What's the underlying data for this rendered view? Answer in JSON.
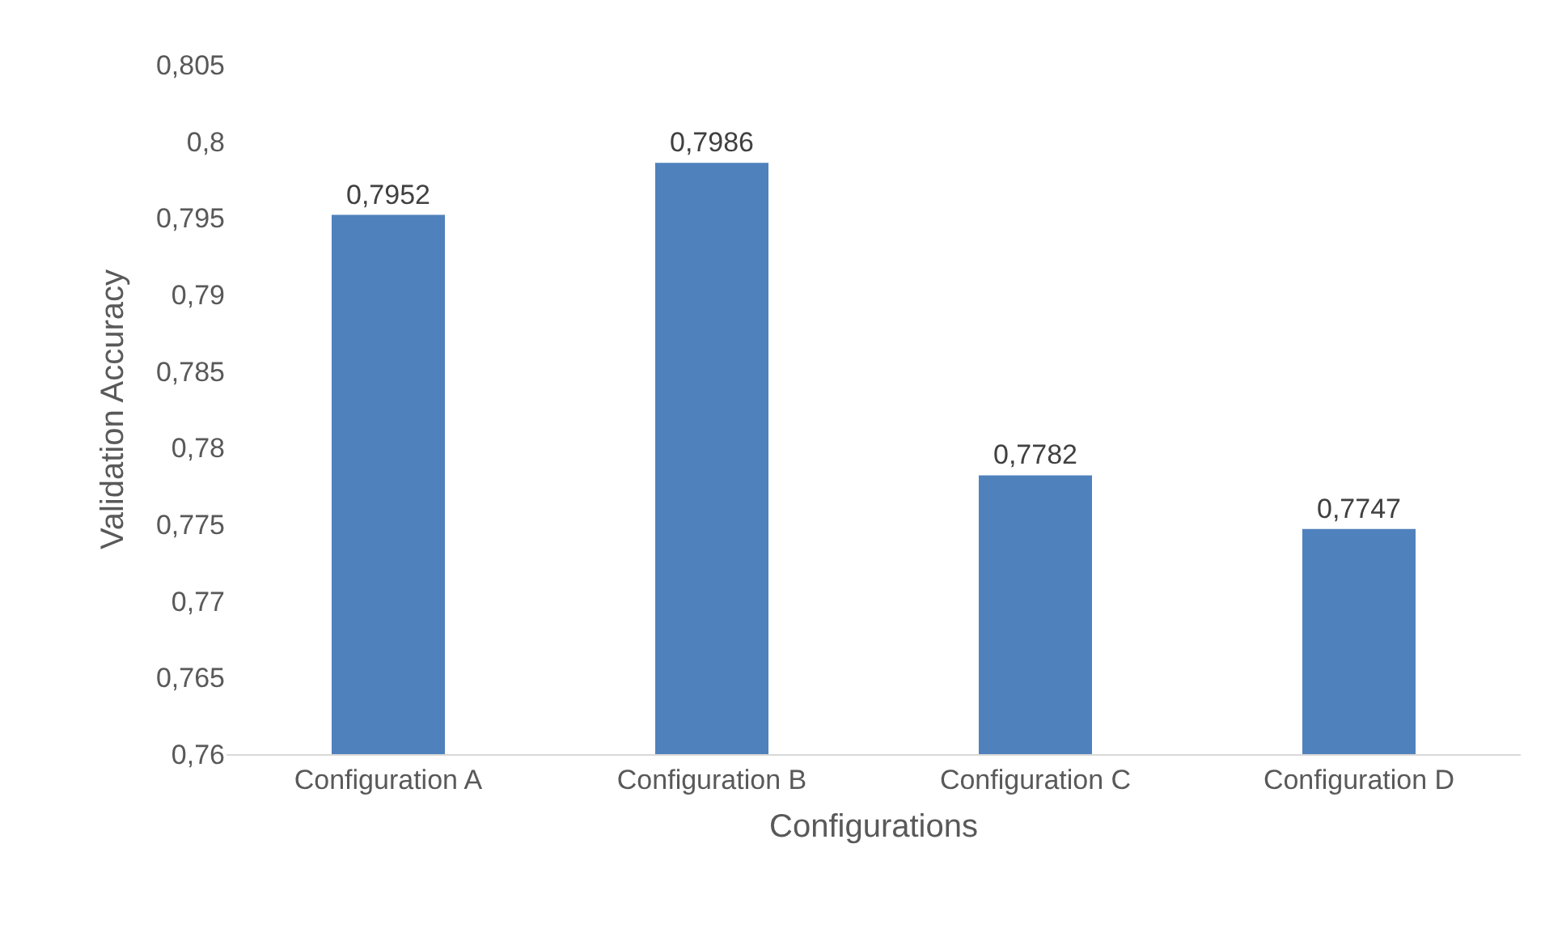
{
  "chart_data": {
    "type": "bar",
    "xlabel": "Configurations",
    "ylabel": "Validation Accuracy",
    "categories": [
      "Configuration A",
      "Configuration B",
      "Configuration C",
      "Configuration D"
    ],
    "values": [
      0.7952,
      0.7986,
      0.7782,
      0.7747
    ],
    "value_labels": [
      "0,7952",
      "0,7986",
      "0,7782",
      "0,7747"
    ],
    "color": "#4f81bd",
    "ylim": [
      0.76,
      0.805
    ],
    "yticks": [
      {
        "value": 0.76,
        "label": "0,76"
      },
      {
        "value": 0.765,
        "label": "0,765"
      },
      {
        "value": 0.77,
        "label": "0,77"
      },
      {
        "value": 0.775,
        "label": "0,775"
      },
      {
        "value": 0.78,
        "label": "0,78"
      },
      {
        "value": 0.785,
        "label": "0,785"
      },
      {
        "value": 0.79,
        "label": "0,79"
      },
      {
        "value": 0.795,
        "label": "0,795"
      },
      {
        "value": 0.8,
        "label": "0,8"
      },
      {
        "value": 0.805,
        "label": "0,805"
      }
    ],
    "grid": false,
    "legend": false
  }
}
